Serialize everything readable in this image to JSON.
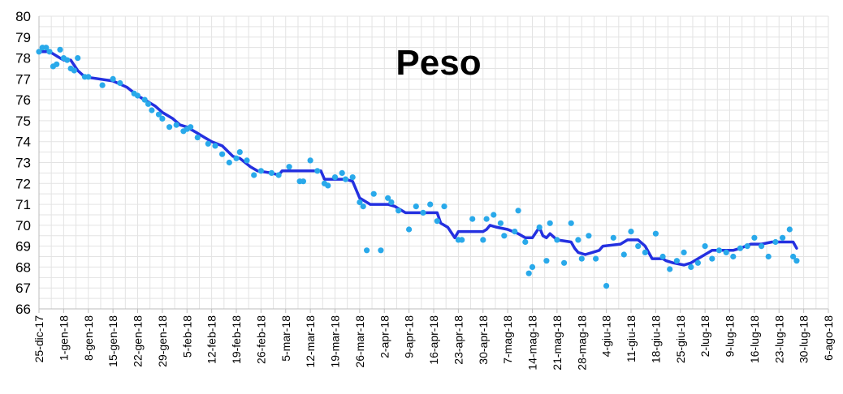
{
  "chart_data": {
    "type": "scatter",
    "title": "Peso",
    "xlabel": "",
    "ylabel": "",
    "ylim": [
      66,
      80
    ],
    "xlim": [
      "2017-12-25",
      "2018-08-06"
    ],
    "grid": true,
    "yticks": [
      "66",
      "67",
      "68",
      "69",
      "70",
      "71",
      "72",
      "73",
      "74",
      "75",
      "76",
      "77",
      "78",
      "79",
      "80"
    ],
    "xticks": [
      "25-dic-17",
      "1-gen-18",
      "8-gen-18",
      "15-gen-18",
      "22-gen-18",
      "29-gen-18",
      "5-feb-18",
      "12-feb-18",
      "19-feb-18",
      "26-feb-18",
      "5-mar-18",
      "12-mar-18",
      "19-mar-18",
      "26-mar-18",
      "2-apr-18",
      "9-apr-18",
      "16-apr-18",
      "23-apr-18",
      "30-apr-18",
      "7-mag-18",
      "14-mag-18",
      "21-mag-18",
      "28-mag-18",
      "4-giu-18",
      "11-giu-18",
      "18-giu-18",
      "25-giu-18",
      "2-lug-18",
      "9-lug-18",
      "16-lug-18",
      "23-lug-18",
      "30-lug-18",
      "6-ago-18"
    ],
    "colors": {
      "points": "#29a9ea",
      "trend": "#2430e0",
      "grid": "#e3e3e3"
    },
    "series": [
      {
        "kind": "points",
        "x": [
          "2017-12-25",
          "2017-12-26",
          "2017-12-27",
          "2017-12-28",
          "2017-12-29",
          "2017-12-30",
          "2017-12-31",
          "2018-01-01",
          "2018-01-02",
          "2018-01-03",
          "2018-01-04",
          "2018-01-05",
          "2018-01-07",
          "2018-01-08",
          "2018-01-12",
          "2018-01-15",
          "2018-01-17",
          "2018-01-21",
          "2018-01-22",
          "2018-01-24",
          "2018-01-25",
          "2018-01-26",
          "2018-01-28",
          "2018-01-29",
          "2018-01-31",
          "2018-02-02",
          "2018-02-04",
          "2018-02-05",
          "2018-02-06",
          "2018-02-08",
          "2018-02-11",
          "2018-02-13",
          "2018-02-15",
          "2018-02-17",
          "2018-02-19",
          "2018-02-20",
          "2018-02-22",
          "2018-02-24",
          "2018-02-26",
          "2018-03-01",
          "2018-03-03",
          "2018-03-06",
          "2018-03-09",
          "2018-03-10",
          "2018-03-12",
          "2018-03-14",
          "2018-03-16",
          "2018-03-17",
          "2018-03-19",
          "2018-03-21",
          "2018-03-22",
          "2018-03-24",
          "2018-03-26",
          "2018-03-27",
          "2018-03-28",
          "2018-03-30",
          "2018-04-01",
          "2018-04-03",
          "2018-04-04",
          "2018-04-06",
          "2018-04-09",
          "2018-04-11",
          "2018-04-13",
          "2018-04-15",
          "2018-04-17",
          "2018-04-19",
          "2018-04-23",
          "2018-04-24",
          "2018-04-27",
          "2018-04-30",
          "2018-05-01",
          "2018-05-03",
          "2018-05-05",
          "2018-05-06",
          "2018-05-09",
          "2018-05-10",
          "2018-05-12",
          "2018-05-13",
          "2018-05-14",
          "2018-05-16",
          "2018-05-18",
          "2018-05-19",
          "2018-05-21",
          "2018-05-23",
          "2018-05-25",
          "2018-05-27",
          "2018-05-28",
          "2018-05-30",
          "2018-06-01",
          "2018-06-04",
          "2018-06-06",
          "2018-06-09",
          "2018-06-11",
          "2018-06-13",
          "2018-06-15",
          "2018-06-18",
          "2018-06-20",
          "2018-06-22",
          "2018-06-24",
          "2018-06-26",
          "2018-06-28",
          "2018-06-30",
          "2018-07-02",
          "2018-07-04",
          "2018-07-06",
          "2018-07-08",
          "2018-07-10",
          "2018-07-12",
          "2018-07-14",
          "2018-07-16",
          "2018-07-18",
          "2018-07-20",
          "2018-07-22",
          "2018-07-24",
          "2018-07-26",
          "2018-07-27",
          "2018-07-28"
        ],
        "y": [
          78.3,
          78.5,
          78.5,
          78.3,
          77.6,
          77.7,
          78.4,
          78.0,
          77.9,
          77.5,
          77.4,
          78.0,
          77.1,
          77.1,
          76.7,
          77.0,
          76.8,
          76.3,
          76.2,
          76.0,
          75.8,
          75.5,
          75.3,
          75.1,
          74.7,
          74.8,
          74.5,
          74.6,
          74.7,
          74.2,
          73.9,
          73.8,
          73.4,
          73.0,
          73.2,
          73.5,
          73.1,
          72.4,
          72.6,
          72.5,
          72.4,
          72.8,
          72.1,
          72.1,
          73.1,
          72.6,
          72.0,
          71.9,
          72.3,
          72.5,
          72.2,
          72.3,
          71.1,
          70.9,
          68.8,
          71.5,
          68.8,
          71.3,
          71.1,
          70.7,
          69.8,
          70.9,
          70.6,
          71.0,
          70.2,
          70.9,
          69.3,
          69.3,
          70.3,
          69.3,
          70.3,
          70.5,
          70.1,
          69.5,
          69.7,
          70.7,
          69.2,
          67.7,
          68.0,
          69.9,
          68.3,
          70.1,
          69.3,
          68.2,
          70.1,
          69.3,
          68.4,
          69.5,
          68.4,
          67.1,
          69.4,
          68.6,
          69.7,
          69.0,
          68.7,
          69.6,
          68.5,
          67.9,
          68.3,
          68.7,
          68.0,
          68.2,
          69.0,
          68.4,
          68.8,
          68.7,
          68.5,
          68.9,
          69.0,
          69.4,
          69.0,
          68.5,
          69.2,
          69.4,
          69.8,
          68.5,
          68.3
        ]
      },
      {
        "kind": "trend",
        "x": [
          "2017-12-25",
          "2017-12-28",
          "2017-12-29",
          "2017-12-31",
          "2018-01-01",
          "2018-01-03",
          "2018-01-05",
          "2018-01-07",
          "2018-01-15",
          "2018-01-19",
          "2018-01-22",
          "2018-01-27",
          "2018-01-29",
          "2018-02-01",
          "2018-02-03",
          "2018-02-05",
          "2018-02-08",
          "2018-02-10",
          "2018-02-12",
          "2018-02-15",
          "2018-02-18",
          "2018-02-20",
          "2018-02-23",
          "2018-02-25",
          "2018-03-01",
          "2018-03-03",
          "2018-03-04",
          "2018-03-12",
          "2018-03-13",
          "2018-03-15",
          "2018-03-16",
          "2018-03-20",
          "2018-03-22",
          "2018-03-24",
          "2018-03-26",
          "2018-03-29",
          "2018-04-01",
          "2018-04-03",
          "2018-04-05",
          "2018-04-06",
          "2018-04-08",
          "2018-04-17",
          "2018-04-18",
          "2018-04-20",
          "2018-04-22",
          "2018-04-23",
          "2018-04-28",
          "2018-04-30",
          "2018-05-01",
          "2018-05-02",
          "2018-05-04",
          "2018-05-07",
          "2018-05-10",
          "2018-05-12",
          "2018-05-13",
          "2018-05-14",
          "2018-05-16",
          "2018-05-17",
          "2018-05-18",
          "2018-05-19",
          "2018-05-21",
          "2018-05-25",
          "2018-05-26",
          "2018-05-27",
          "2018-05-29",
          "2018-05-31",
          "2018-06-02",
          "2018-06-03",
          "2018-06-08",
          "2018-06-10",
          "2018-06-12",
          "2018-06-13",
          "2018-06-15",
          "2018-06-17",
          "2018-06-20",
          "2018-06-21",
          "2018-06-23",
          "2018-06-26",
          "2018-06-28",
          "2018-07-01",
          "2018-07-03",
          "2018-07-04",
          "2018-07-07",
          "2018-07-10",
          "2018-07-12",
          "2018-07-15",
          "2018-07-18",
          "2018-07-21",
          "2018-07-23",
          "2018-07-25",
          "2018-07-27",
          "2018-07-28"
        ],
        "y": [
          78.3,
          78.3,
          78.2,
          78.0,
          77.9,
          77.9,
          77.4,
          77.1,
          76.9,
          76.6,
          76.2,
          75.7,
          75.4,
          75.1,
          74.8,
          74.7,
          74.4,
          74.2,
          74.0,
          73.8,
          73.3,
          73.2,
          72.8,
          72.6,
          72.5,
          72.4,
          72.6,
          72.6,
          72.6,
          72.6,
          72.2,
          72.2,
          72.2,
          72.1,
          71.3,
          71.0,
          71.0,
          71.0,
          70.9,
          70.8,
          70.6,
          70.6,
          70.1,
          69.9,
          69.4,
          69.7,
          69.7,
          69.7,
          69.8,
          70.0,
          69.9,
          69.8,
          69.6,
          69.4,
          69.4,
          69.4,
          69.9,
          69.5,
          69.4,
          69.6,
          69.3,
          69.2,
          68.9,
          68.7,
          68.6,
          68.7,
          68.8,
          69.0,
          69.1,
          69.3,
          69.3,
          69.3,
          69.0,
          68.4,
          68.4,
          68.3,
          68.2,
          68.1,
          68.2,
          68.5,
          68.7,
          68.8,
          68.8,
          68.8,
          68.9,
          69.1,
          69.1,
          69.2,
          69.2,
          69.2,
          69.2,
          68.9
        ]
      }
    ]
  }
}
